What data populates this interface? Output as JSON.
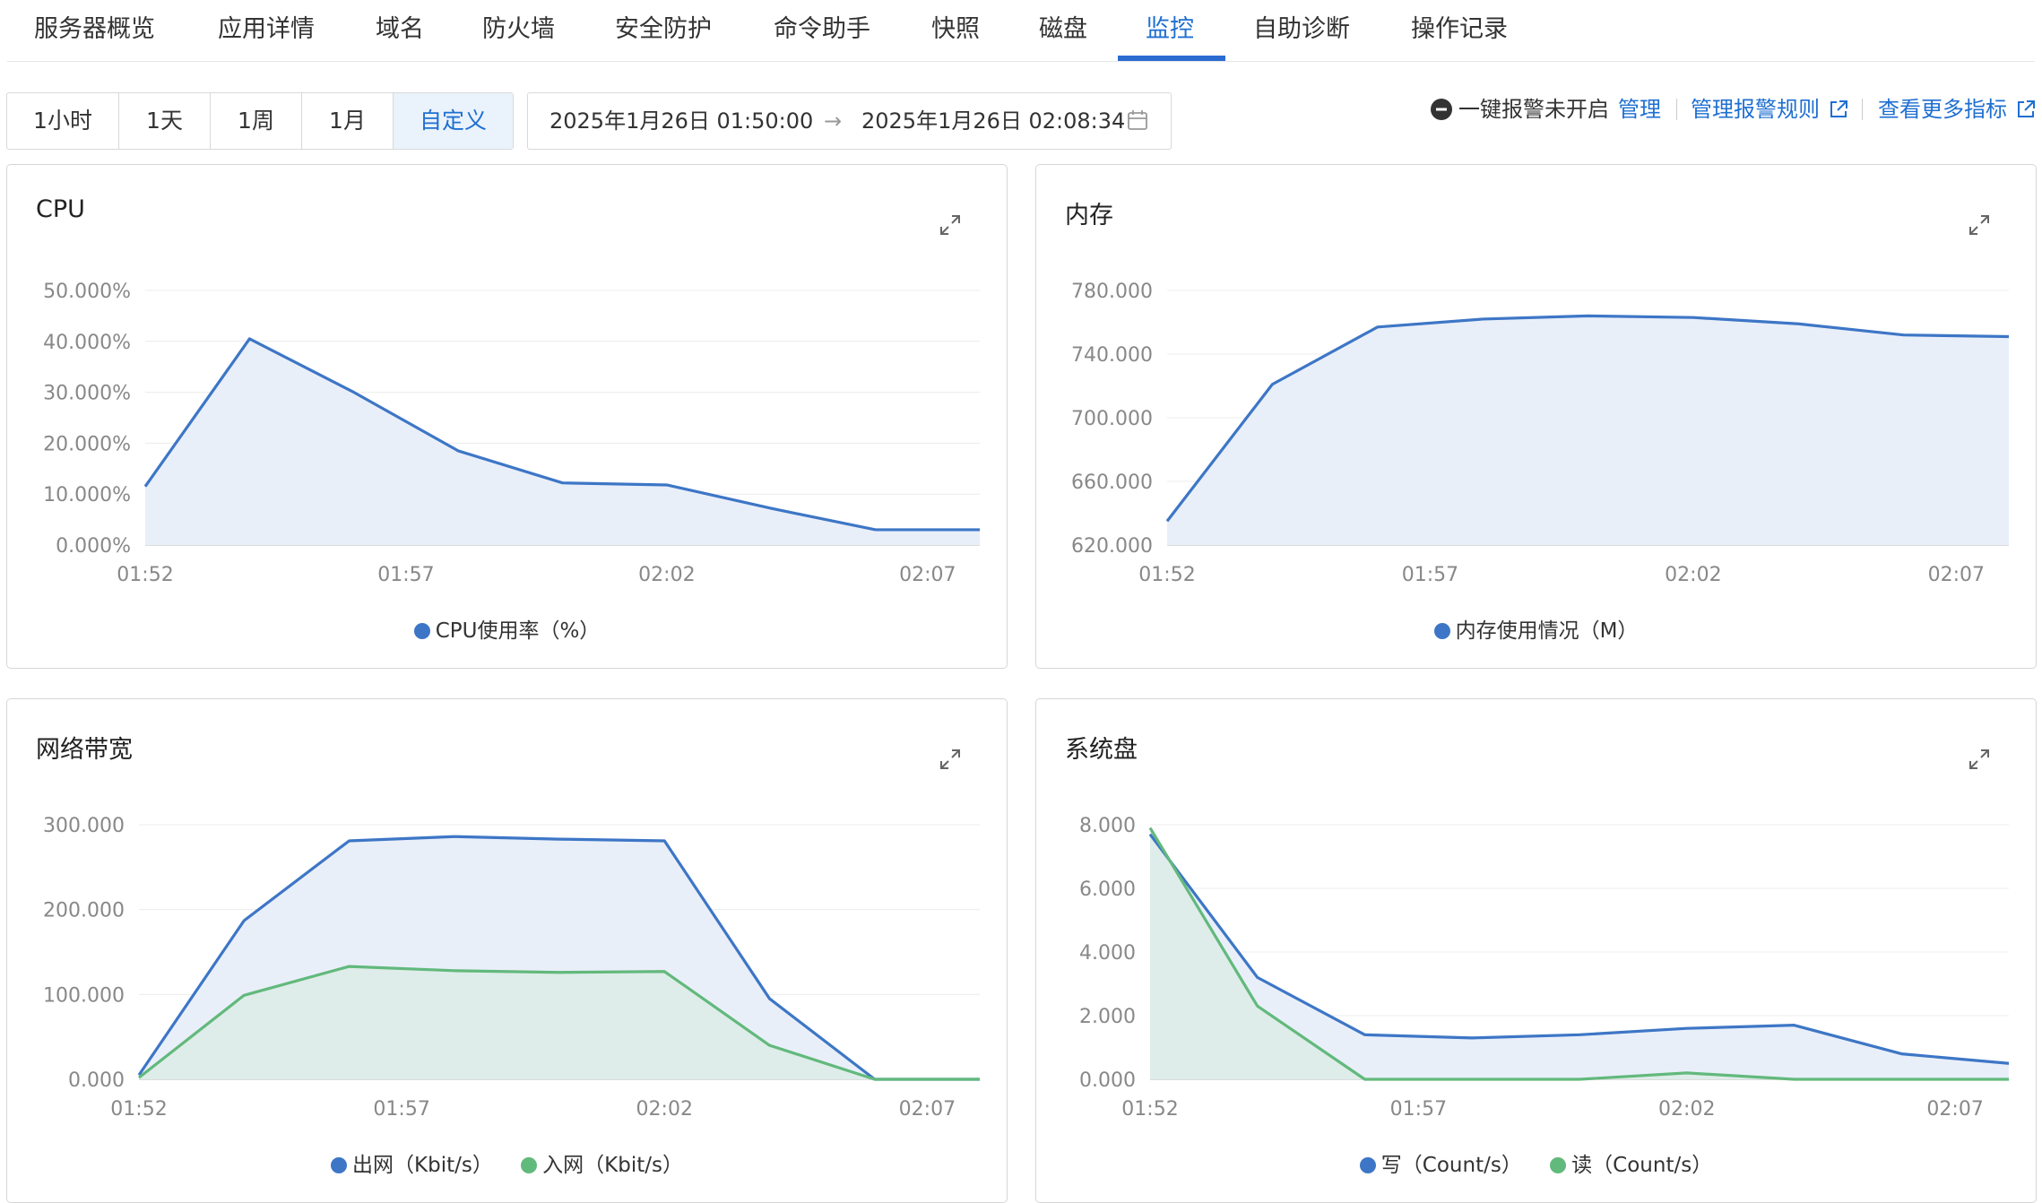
{
  "tabs": [
    {
      "label": "服务器概览"
    },
    {
      "label": "应用详情"
    },
    {
      "label": "域名"
    },
    {
      "label": "防火墙"
    },
    {
      "label": "安全防护"
    },
    {
      "label": "命令助手"
    },
    {
      "label": "快照"
    },
    {
      "label": "磁盘"
    },
    {
      "label": "监控",
      "active": true
    },
    {
      "label": "自助诊断"
    },
    {
      "label": "操作记录"
    }
  ],
  "time_range": {
    "options": [
      "1小时",
      "1天",
      "1周",
      "1月",
      "自定义"
    ],
    "selected": "自定义",
    "start": "2025年1月26日 01:50:00",
    "end": "2025年1月26日 02:08:34",
    "separator_glyph": "→"
  },
  "alarm": {
    "status_icon": "minus-circle-icon",
    "status_text": "一键报警未开启",
    "manage_link": "管理",
    "rules_link": "管理报警规则",
    "more_link": "查看更多指标"
  },
  "colors": {
    "accent": "#1f6fd1",
    "series_blue": "#3d76c6",
    "series_blue_fill": "#e9eff9",
    "series_green": "#62b97c",
    "series_green_fill": "#dcece6",
    "gridline": "#ececec",
    "axis_text": "#888888"
  },
  "chart_data": [
    {
      "type": "area",
      "title": "CPU",
      "x": [
        "01:52",
        "01:54",
        "01:56",
        "01:58",
        "02:00",
        "02:02",
        "02:04",
        "02:06",
        "02:08"
      ],
      "x_ticks": [
        "01:52",
        "01:57",
        "02:02",
        "02:07"
      ],
      "series": [
        {
          "name": "CPU使用率（%）",
          "color": "#3d76c6",
          "values": [
            11.5,
            40.5,
            30,
            18.5,
            12.2,
            11.8,
            7.2,
            3,
            3
          ]
        }
      ],
      "ylim": [
        0,
        50
      ],
      "y_ticks": [
        "0.000%",
        "10.000%",
        "20.000%",
        "30.000%",
        "40.000%",
        "50.000%"
      ],
      "grid": true,
      "legend": "bottom-center"
    },
    {
      "type": "area",
      "title": "内存",
      "x": [
        "01:52",
        "01:54",
        "01:56",
        "01:58",
        "02:00",
        "02:02",
        "02:04",
        "02:06",
        "02:08"
      ],
      "x_ticks": [
        "01:52",
        "01:57",
        "02:02",
        "02:07"
      ],
      "series": [
        {
          "name": "内存使用情况（M）",
          "color": "#3d76c6",
          "values": [
            635,
            721,
            757,
            762,
            764,
            763,
            759,
            752,
            751
          ]
        }
      ],
      "ylim": [
        620,
        780
      ],
      "y_ticks": [
        "620.000",
        "660.000",
        "700.000",
        "740.000",
        "780.000"
      ],
      "grid": true,
      "legend": "bottom-center"
    },
    {
      "type": "area",
      "title": "网络带宽",
      "x": [
        "01:52",
        "01:54",
        "01:56",
        "01:58",
        "02:00",
        "02:02",
        "02:04",
        "02:06",
        "02:08"
      ],
      "x_ticks": [
        "01:52",
        "01:57",
        "02:02",
        "02:07"
      ],
      "series": [
        {
          "name": "出网（Kbit/s）",
          "color": "#3d76c6",
          "values": [
            5,
            187,
            281,
            286,
            283,
            281,
            95,
            0,
            0
          ]
        },
        {
          "name": "入网（Kbit/s）",
          "color": "#62b97c",
          "values": [
            2,
            99,
            133,
            128,
            126,
            127,
            40,
            0,
            0
          ]
        }
      ],
      "ylim": [
        0,
        300
      ],
      "y_ticks": [
        "0.000",
        "100.000",
        "200.000",
        "300.000"
      ],
      "grid": true,
      "legend": "bottom-center"
    },
    {
      "type": "area",
      "title": "系统盘",
      "x": [
        "01:52",
        "01:54",
        "01:56",
        "01:58",
        "02:00",
        "02:02",
        "02:04",
        "02:06",
        "02:08"
      ],
      "x_ticks": [
        "01:52",
        "01:57",
        "02:02",
        "02:07"
      ],
      "series": [
        {
          "name": "写（Count/s）",
          "color": "#3d76c6",
          "values": [
            7.7,
            3.2,
            1.4,
            1.3,
            1.4,
            1.6,
            1.7,
            0.8,
            0.5
          ]
        },
        {
          "name": "读（Count/s）",
          "color": "#62b97c",
          "values": [
            7.9,
            2.3,
            0,
            0,
            0,
            0.2,
            0,
            0,
            0
          ]
        }
      ],
      "ylim": [
        0,
        8
      ],
      "y_ticks": [
        "0.000",
        "2.000",
        "4.000",
        "6.000",
        "8.000"
      ],
      "grid": true,
      "legend": "bottom-center"
    }
  ]
}
